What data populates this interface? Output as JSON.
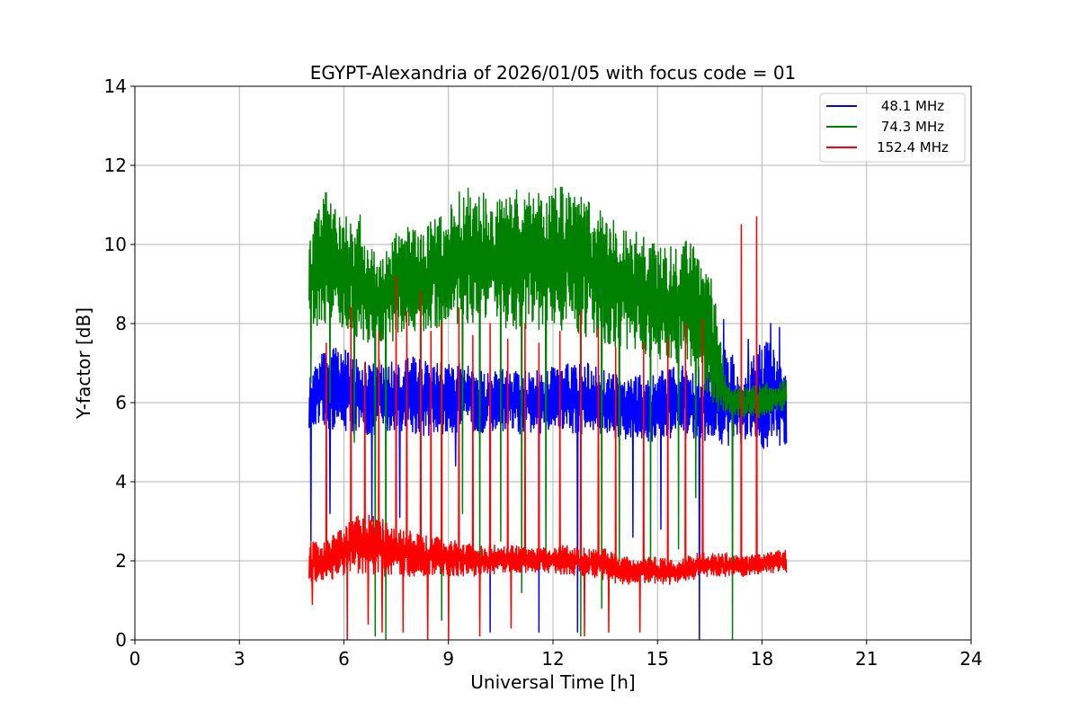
{
  "chart_data": {
    "type": "line",
    "title": "EGYPT-Alexandria of 2026/01/05 with focus code = 01",
    "xlabel": "Universal Time [h]",
    "ylabel": "Y-factor [dB]",
    "xlim": [
      0,
      24
    ],
    "ylim": [
      0,
      14
    ],
    "xticks": [
      "0",
      "3",
      "6",
      "9",
      "12",
      "15",
      "18",
      "21",
      "24"
    ],
    "yticks": [
      "0",
      "2",
      "4",
      "6",
      "8",
      "10",
      "12",
      "14"
    ],
    "grid": true,
    "legend_position": "top-right",
    "series": [
      {
        "name": "48.1 MHz",
        "color": "#0000ff",
        "x": [
          5.0,
          5.5,
          6.0,
          6.5,
          7.0,
          7.5,
          8.0,
          8.5,
          9.0,
          9.5,
          10.0,
          10.5,
          11.0,
          11.5,
          12.0,
          12.5,
          13.0,
          13.5,
          14.0,
          14.5,
          15.0,
          15.5,
          16.0,
          16.5,
          17.0,
          17.5,
          18.0,
          18.7
        ],
        "low": [
          5.3,
          5.2,
          5.3,
          5.1,
          5.2,
          5.3,
          5.2,
          5.1,
          5.2,
          5.3,
          5.2,
          5.3,
          5.2,
          5.2,
          5.3,
          5.2,
          5.2,
          5.1,
          5.1,
          5.0,
          5.0,
          5.0,
          5.1,
          5.0,
          4.9,
          4.9,
          4.8,
          4.9
        ],
        "high": [
          6.6,
          7.5,
          7.4,
          7.0,
          7.1,
          7.0,
          7.2,
          7.0,
          7.1,
          7.0,
          6.8,
          7.0,
          6.9,
          6.8,
          6.9,
          7.0,
          7.0,
          6.8,
          6.7,
          6.7,
          6.8,
          6.9,
          7.0,
          6.8,
          7.5,
          6.6,
          7.8,
          6.9
        ],
        "spikes_down": [
          [
            5.05,
            2.5
          ],
          [
            5.6,
            3.2
          ],
          [
            6.8,
            3.0
          ],
          [
            7.6,
            3.1
          ],
          [
            9.2,
            4.4
          ],
          [
            10.2,
            0.2
          ],
          [
            11.6,
            0.2
          ],
          [
            12.7,
            0.2
          ],
          [
            14.3,
            2.6
          ],
          [
            15.1,
            2.8
          ],
          [
            16.2,
            0.0
          ]
        ],
        "spikes_up": [
          [
            16.9,
            8.1
          ],
          [
            17.6,
            7.6
          ],
          [
            18.25,
            8.0
          ],
          [
            18.5,
            7.9
          ]
        ]
      },
      {
        "name": "74.3 MHz",
        "color": "#008000",
        "x": [
          5.0,
          5.5,
          6.0,
          6.5,
          7.0,
          7.5,
          8.0,
          8.5,
          9.0,
          9.5,
          10.0,
          10.5,
          11.0,
          11.5,
          12.0,
          12.5,
          13.0,
          13.5,
          14.0,
          14.5,
          15.0,
          15.5,
          16.0,
          16.5,
          17.0,
          17.5,
          18.0,
          18.7
        ],
        "low": [
          7.9,
          8.0,
          7.8,
          7.6,
          7.4,
          7.6,
          7.7,
          7.8,
          7.9,
          8.0,
          7.9,
          7.9,
          7.8,
          7.8,
          7.9,
          7.7,
          7.6,
          7.4,
          7.3,
          7.2,
          7.1,
          7.0,
          6.9,
          5.7,
          5.7,
          5.6,
          5.6,
          5.8
        ],
        "high": [
          10.3,
          11.4,
          10.7,
          10.8,
          9.5,
          10.3,
          10.5,
          10.6,
          10.9,
          11.6,
          11.3,
          11.2,
          11.4,
          11.3,
          11.6,
          11.4,
          11.1,
          10.8,
          10.6,
          10.3,
          10.0,
          10.0,
          10.2,
          9.5,
          6.5,
          6.4,
          6.5,
          6.6
        ],
        "spikes_down": [
          [
            5.05,
            6.5
          ],
          [
            5.6,
            6.0
          ],
          [
            6.3,
            5.0
          ],
          [
            6.9,
            0.1
          ],
          [
            7.2,
            0.0
          ],
          [
            8.2,
            2.0
          ],
          [
            8.8,
            0.5
          ],
          [
            9.4,
            3.2
          ],
          [
            9.9,
            1.6
          ],
          [
            10.5,
            2.5
          ],
          [
            11.1,
            1.2
          ],
          [
            11.8,
            2.0
          ],
          [
            12.8,
            0.1
          ],
          [
            13.4,
            0.8
          ],
          [
            13.9,
            2.0
          ],
          [
            14.8,
            1.5
          ],
          [
            15.6,
            2.3
          ],
          [
            16.1,
            3.6
          ],
          [
            17.15,
            0.0
          ]
        ],
        "spikes_up": []
      },
      {
        "name": "152.4 MHz",
        "color": "#ff0000",
        "x": [
          5.0,
          5.5,
          6.0,
          6.5,
          7.0,
          7.5,
          8.0,
          8.5,
          9.0,
          9.5,
          10.0,
          10.5,
          11.0,
          11.5,
          12.0,
          12.5,
          13.0,
          13.5,
          14.0,
          14.5,
          15.0,
          15.5,
          16.0,
          16.5,
          17.0,
          17.5,
          18.0,
          18.7
        ],
        "low": [
          1.4,
          1.5,
          1.6,
          1.6,
          1.6,
          1.6,
          1.6,
          1.6,
          1.6,
          1.6,
          1.6,
          1.7,
          1.7,
          1.7,
          1.7,
          1.6,
          1.6,
          1.5,
          1.4,
          1.4,
          1.4,
          1.4,
          1.5,
          1.6,
          1.6,
          1.6,
          1.7,
          1.7
        ],
        "high": [
          2.5,
          2.5,
          2.9,
          3.2,
          3.1,
          3.0,
          2.7,
          2.6,
          2.6,
          2.5,
          2.4,
          2.4,
          2.4,
          2.3,
          2.4,
          2.4,
          2.3,
          2.3,
          2.1,
          2.1,
          2.1,
          2.0,
          2.2,
          2.2,
          2.2,
          2.1,
          2.2,
          2.3
        ],
        "spikes_up": [
          [
            5.5,
            7.5
          ],
          [
            6.2,
            8.4
          ],
          [
            6.6,
            7.0
          ],
          [
            7.0,
            7.8
          ],
          [
            7.5,
            9.2
          ],
          [
            7.8,
            8.3
          ],
          [
            8.2,
            8.8
          ],
          [
            8.5,
            7.8
          ],
          [
            8.8,
            8.0
          ],
          [
            9.3,
            8.4
          ],
          [
            9.7,
            7.7
          ],
          [
            10.2,
            8.0
          ],
          [
            10.7,
            7.6
          ],
          [
            11.2,
            8.0
          ],
          [
            11.6,
            7.5
          ],
          [
            12.2,
            7.8
          ],
          [
            12.8,
            8.3
          ],
          [
            13.3,
            7.9
          ],
          [
            13.8,
            7.4
          ],
          [
            14.6,
            7.5
          ],
          [
            15.3,
            7.6
          ],
          [
            15.8,
            8.0
          ],
          [
            16.3,
            8.1
          ],
          [
            17.4,
            10.5
          ],
          [
            17.85,
            10.7
          ]
        ],
        "spikes_down": [
          [
            5.1,
            0.9
          ],
          [
            6.1,
            0.0
          ],
          [
            6.7,
            0.4
          ],
          [
            7.1,
            0.2
          ],
          [
            7.7,
            0.2
          ],
          [
            8.4,
            0.0
          ],
          [
            9.0,
            0.0
          ],
          [
            9.9,
            0.1
          ],
          [
            10.8,
            0.3
          ],
          [
            11.6,
            0.1
          ],
          [
            12.9,
            0.1
          ],
          [
            13.6,
            0.2
          ],
          [
            14.5,
            0.2
          ],
          [
            15.8,
            0.0
          ]
        ]
      }
    ]
  }
}
